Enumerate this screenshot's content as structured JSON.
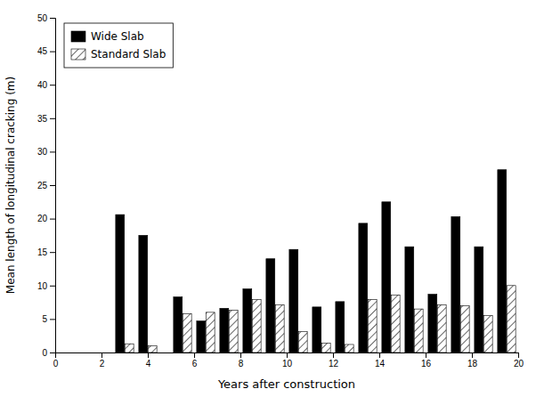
{
  "chart_data": {
    "type": "bar",
    "xlabel": "Years after construction",
    "ylabel": "Mean length of longitudinal cracking (m)",
    "x": [
      3.0,
      4.0,
      5.5,
      6.5,
      7.5,
      8.5,
      9.5,
      10.5,
      11.5,
      12.5,
      13.5,
      14.5,
      15.5,
      16.5,
      17.5,
      18.5,
      19.5
    ],
    "series": [
      {
        "name": "Wide Slab",
        "color": "#000000",
        "values": [
          20.6,
          17.5,
          8.3,
          4.7,
          6.6,
          9.5,
          14.0,
          15.4,
          6.8,
          7.6,
          19.3,
          22.5,
          15.8,
          8.7,
          20.3,
          15.8,
          27.3
        ]
      },
      {
        "name": "Standard Slab",
        "color": "#ffffff",
        "values": [
          1.3,
          1.0,
          5.8,
          6.0,
          6.3,
          7.9,
          7.1,
          3.1,
          1.4,
          1.2,
          7.9,
          8.6,
          6.5,
          7.1,
          7.0,
          5.5,
          10.0
        ]
      }
    ],
    "xlim": [
      0,
      20
    ],
    "xticks": [
      0,
      2,
      4,
      6,
      8,
      10,
      12,
      14,
      16,
      18,
      20
    ],
    "ylim": [
      0,
      50
    ],
    "yticks": [
      0,
      5,
      10,
      15,
      20,
      25,
      30,
      35,
      40,
      45,
      50
    ],
    "legend": "upper left",
    "grid": false
  }
}
